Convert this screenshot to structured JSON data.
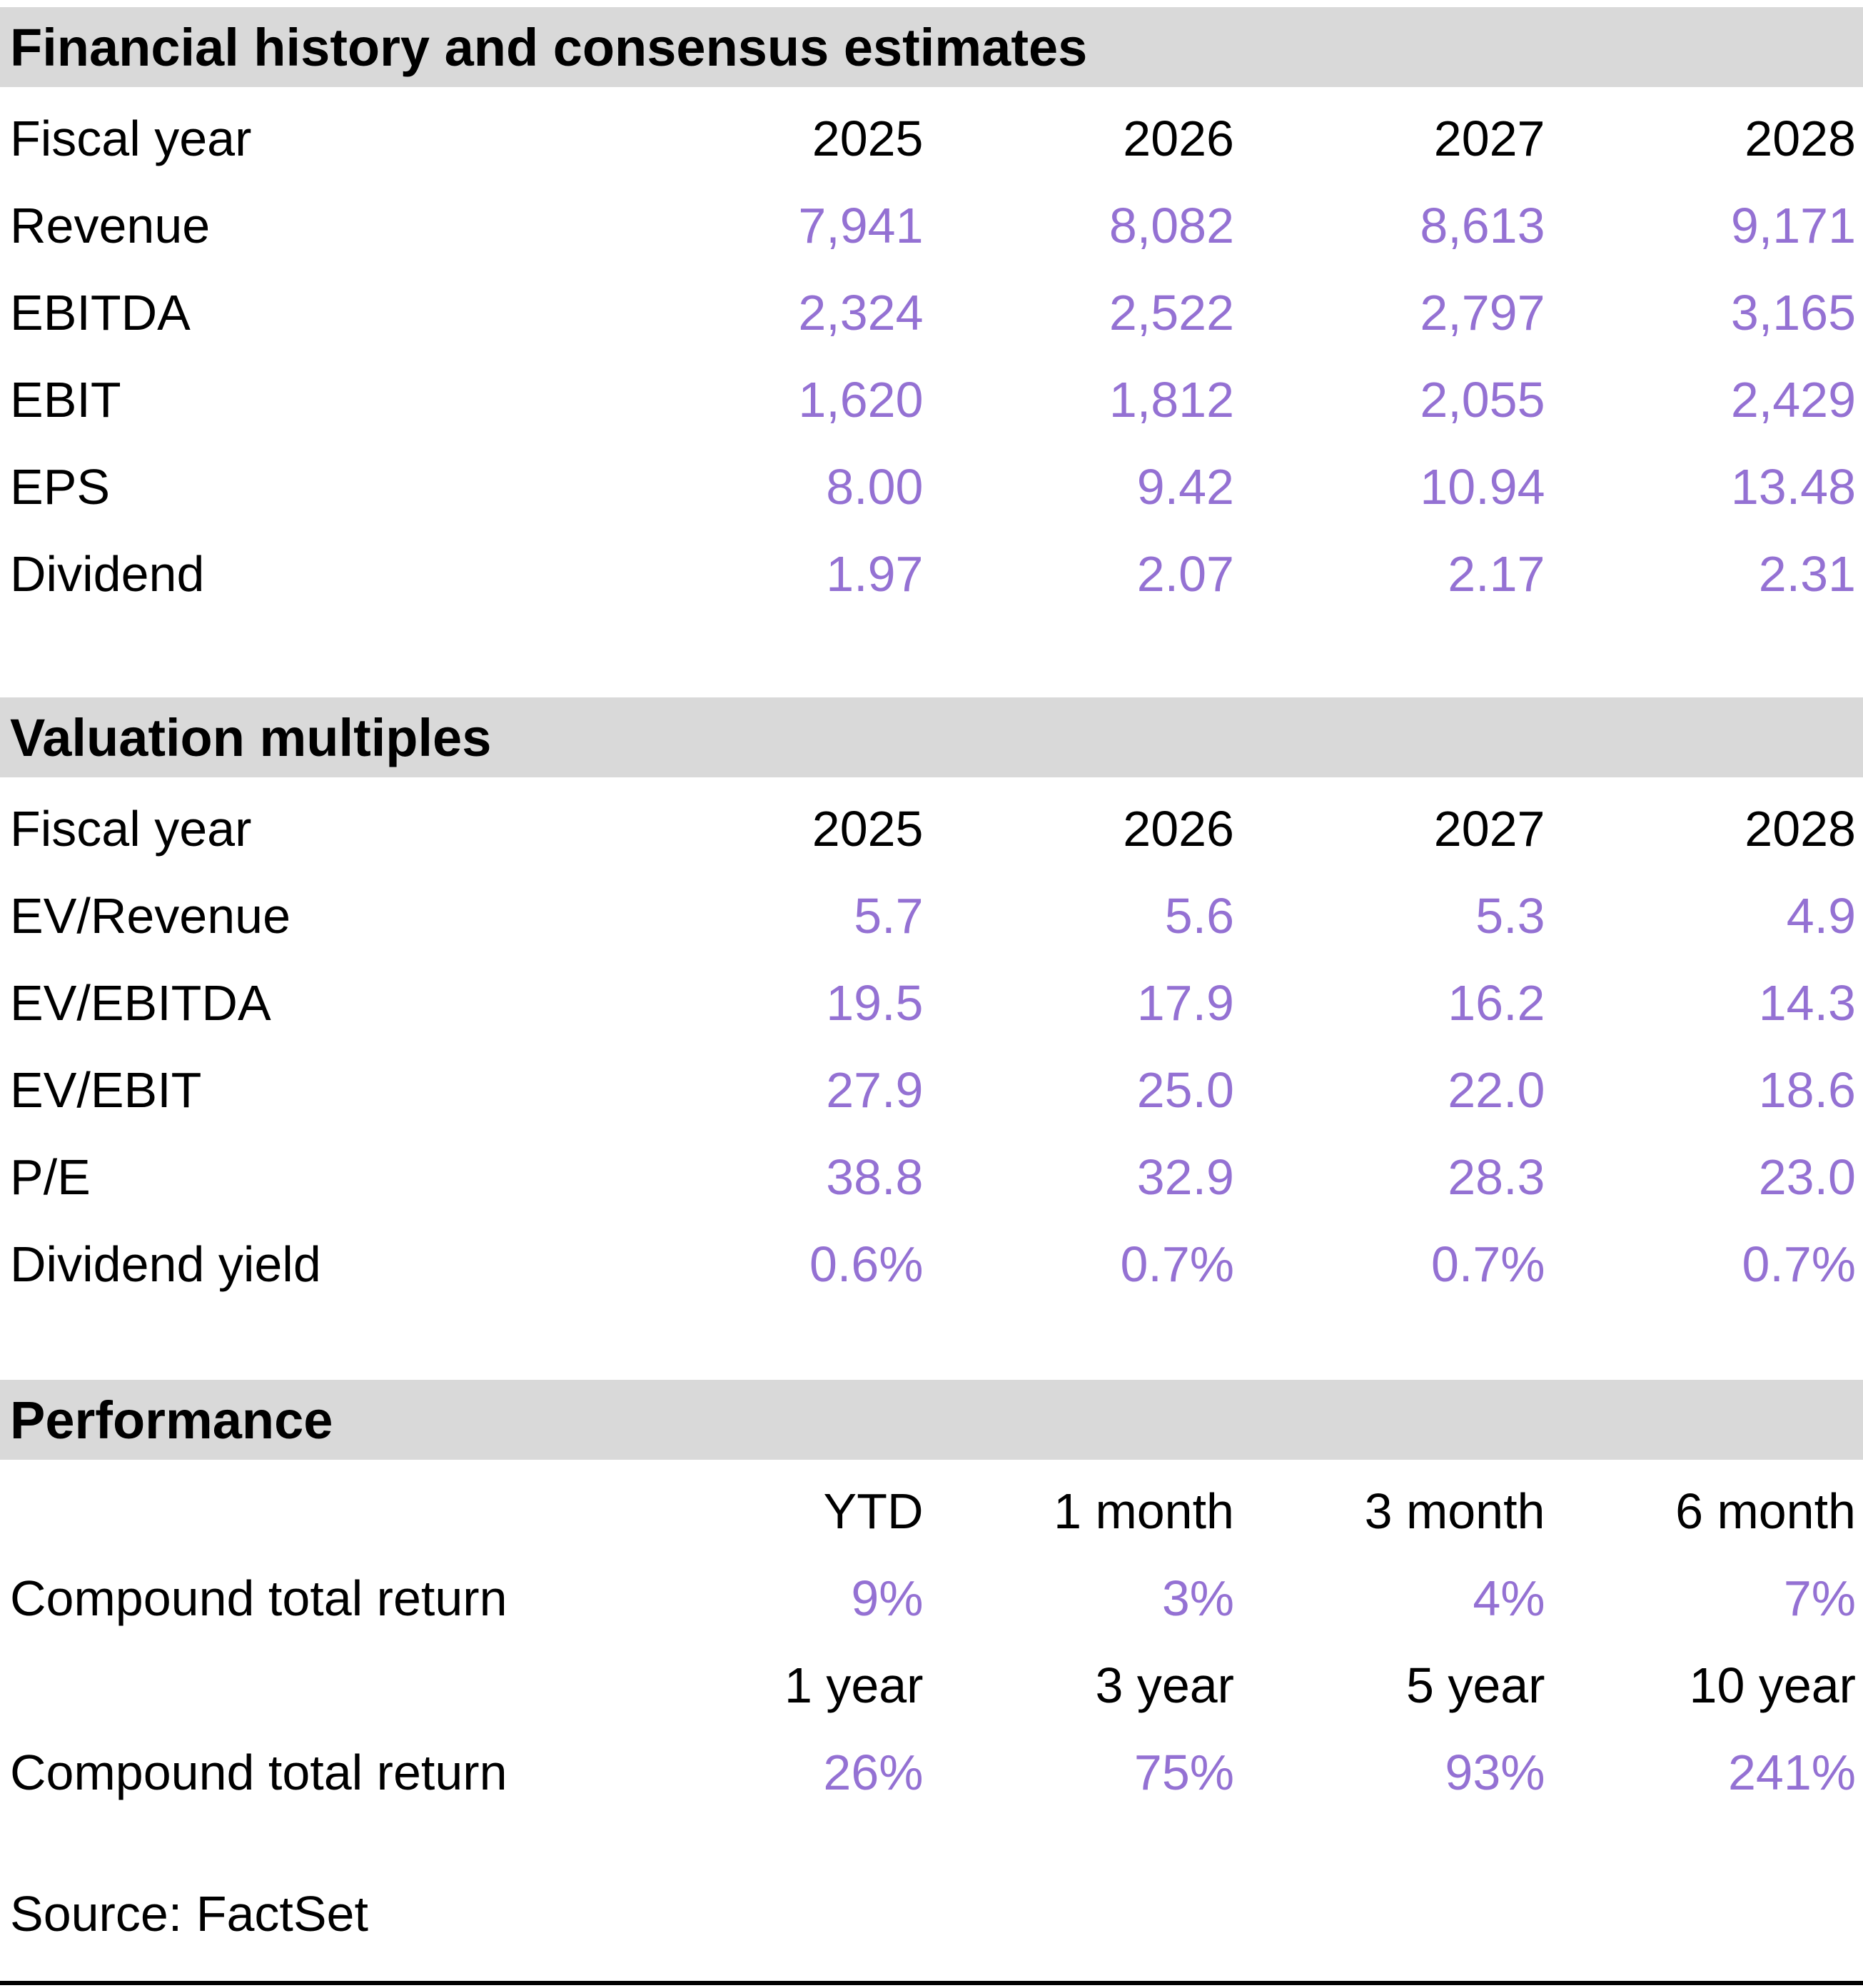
{
  "colors": {
    "value_purple": "#9471d3",
    "section_header_bg": "#d9d9d9"
  },
  "sections": [
    {
      "title": "Financial history and consensus estimates",
      "header_row": {
        "label": "Fiscal year",
        "columns": [
          "2025",
          "2026",
          "2027",
          "2028"
        ]
      },
      "rows": [
        {
          "label": "Revenue",
          "values": [
            "7,941",
            "8,082",
            "8,613",
            "9,171"
          ]
        },
        {
          "label": "EBITDA",
          "values": [
            "2,324",
            "2,522",
            "2,797",
            "3,165"
          ]
        },
        {
          "label": "EBIT",
          "values": [
            "1,620",
            "1,812",
            "2,055",
            "2,429"
          ]
        },
        {
          "label": "EPS",
          "values": [
            "8.00",
            "9.42",
            "10.94",
            "13.48"
          ]
        },
        {
          "label": "Dividend",
          "values": [
            "1.97",
            "2.07",
            "2.17",
            "2.31"
          ]
        }
      ]
    },
    {
      "title": "Valuation multiples",
      "header_row": {
        "label": "Fiscal year",
        "columns": [
          "2025",
          "2026",
          "2027",
          "2028"
        ]
      },
      "rows": [
        {
          "label": "EV/Revenue",
          "values": [
            "5.7",
            "5.6",
            "5.3",
            "4.9"
          ]
        },
        {
          "label": "EV/EBITDA",
          "values": [
            "19.5",
            "17.9",
            "16.2",
            "14.3"
          ]
        },
        {
          "label": "EV/EBIT",
          "values": [
            "27.9",
            "25.0",
            "22.0",
            "18.6"
          ]
        },
        {
          "label": "P/E",
          "values": [
            "38.8",
            "32.9",
            "28.3",
            "23.0"
          ]
        },
        {
          "label": "Dividend yield",
          "values": [
            "0.6%",
            "0.7%",
            "0.7%",
            "0.7%"
          ]
        }
      ]
    },
    {
      "title": "Performance",
      "subtables": [
        {
          "header_row": {
            "label": "",
            "columns": [
              "YTD",
              "1 month",
              "3 month",
              "6 month"
            ]
          },
          "rows": [
            {
              "label": "Compound total return",
              "values": [
                "9%",
                "3%",
                "4%",
                "7%"
              ]
            }
          ]
        },
        {
          "header_row": {
            "label": "",
            "columns": [
              "1 year",
              "3 year",
              "5 year",
              "10 year"
            ]
          },
          "rows": [
            {
              "label": "Compound total return",
              "values": [
                "26%",
                "75%",
                "93%",
                "241%"
              ]
            }
          ]
        }
      ]
    }
  ],
  "footer": {
    "source_label": "Source: FactSet"
  }
}
